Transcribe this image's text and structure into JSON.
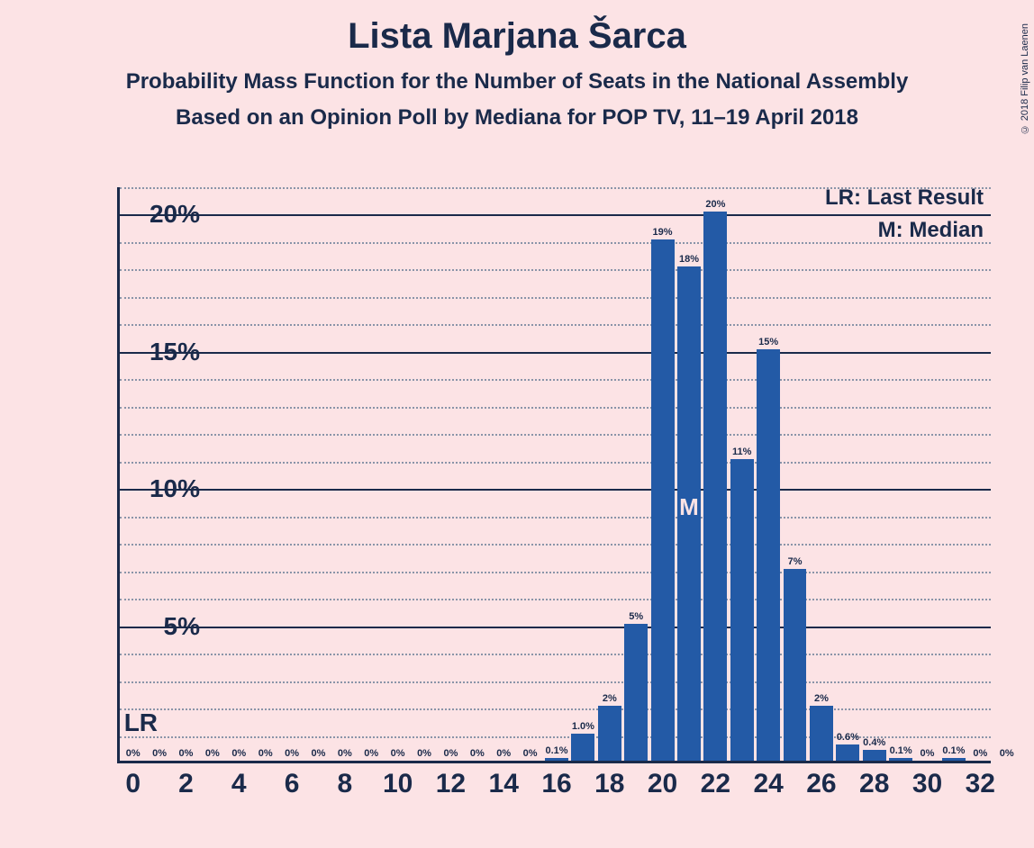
{
  "title": "Lista Marjana Šarca",
  "subtitle1": "Probability Mass Function for the Number of Seats in the National Assembly",
  "subtitle2": "Based on an Opinion Poll by Mediana for POP TV, 11–19 April 2018",
  "copyright": "© 2018 Filip van Laenen",
  "legend": {
    "lr": "LR: Last Result",
    "m": "M: Median"
  },
  "lr_marker": "LR",
  "m_marker": "M",
  "chart": {
    "type": "bar",
    "background_color": "#fce3e5",
    "bar_color": "#235aa6",
    "axis_color": "#1a2a4a",
    "grid_minor_color": "#8a94a8",
    "text_color": "#1a2a4a",
    "median_marker_color": "#fce3e5",
    "x_range": [
      0,
      32
    ],
    "x_tick_step": 2,
    "y_range": [
      0,
      21
    ],
    "y_major_ticks": [
      5,
      10,
      15,
      20
    ],
    "y_minor_step": 1,
    "bar_width_ratio": 0.88,
    "lr_position": 0,
    "median_position": 21,
    "bars": [
      {
        "x": 0,
        "value": 0,
        "label": "0%"
      },
      {
        "x": 1,
        "value": 0,
        "label": "0%"
      },
      {
        "x": 2,
        "value": 0,
        "label": "0%"
      },
      {
        "x": 3,
        "value": 0,
        "label": "0%"
      },
      {
        "x": 4,
        "value": 0,
        "label": "0%"
      },
      {
        "x": 5,
        "value": 0,
        "label": "0%"
      },
      {
        "x": 6,
        "value": 0,
        "label": "0%"
      },
      {
        "x": 7,
        "value": 0,
        "label": "0%"
      },
      {
        "x": 8,
        "value": 0,
        "label": "0%"
      },
      {
        "x": 9,
        "value": 0,
        "label": "0%"
      },
      {
        "x": 10,
        "value": 0,
        "label": "0%"
      },
      {
        "x": 11,
        "value": 0,
        "label": "0%"
      },
      {
        "x": 12,
        "value": 0,
        "label": "0%"
      },
      {
        "x": 13,
        "value": 0,
        "label": "0%"
      },
      {
        "x": 14,
        "value": 0,
        "label": "0%"
      },
      {
        "x": 15,
        "value": 0,
        "label": "0%"
      },
      {
        "x": 16,
        "value": 0.1,
        "label": "0.1%"
      },
      {
        "x": 17,
        "value": 1.0,
        "label": "1.0%"
      },
      {
        "x": 18,
        "value": 2,
        "label": "2%"
      },
      {
        "x": 19,
        "value": 5,
        "label": "5%"
      },
      {
        "x": 20,
        "value": 19,
        "label": "19%"
      },
      {
        "x": 21,
        "value": 18,
        "label": "18%"
      },
      {
        "x": 22,
        "value": 20,
        "label": "20%"
      },
      {
        "x": 23,
        "value": 11,
        "label": "11%"
      },
      {
        "x": 24,
        "value": 15,
        "label": "15%"
      },
      {
        "x": 25,
        "value": 7,
        "label": "7%"
      },
      {
        "x": 26,
        "value": 2,
        "label": "2%"
      },
      {
        "x": 27,
        "value": 0.6,
        "label": "0.6%"
      },
      {
        "x": 28,
        "value": 0.4,
        "label": "0.4%"
      },
      {
        "x": 29,
        "value": 0.1,
        "label": "0.1%"
      },
      {
        "x": 30,
        "value": 0,
        "label": "0%"
      },
      {
        "x": 31,
        "value": 0.1,
        "label": "0.1%"
      },
      {
        "x": 32,
        "value": 0,
        "label": "0%"
      },
      {
        "x": 33,
        "value": 0,
        "label": "0%"
      }
    ]
  }
}
